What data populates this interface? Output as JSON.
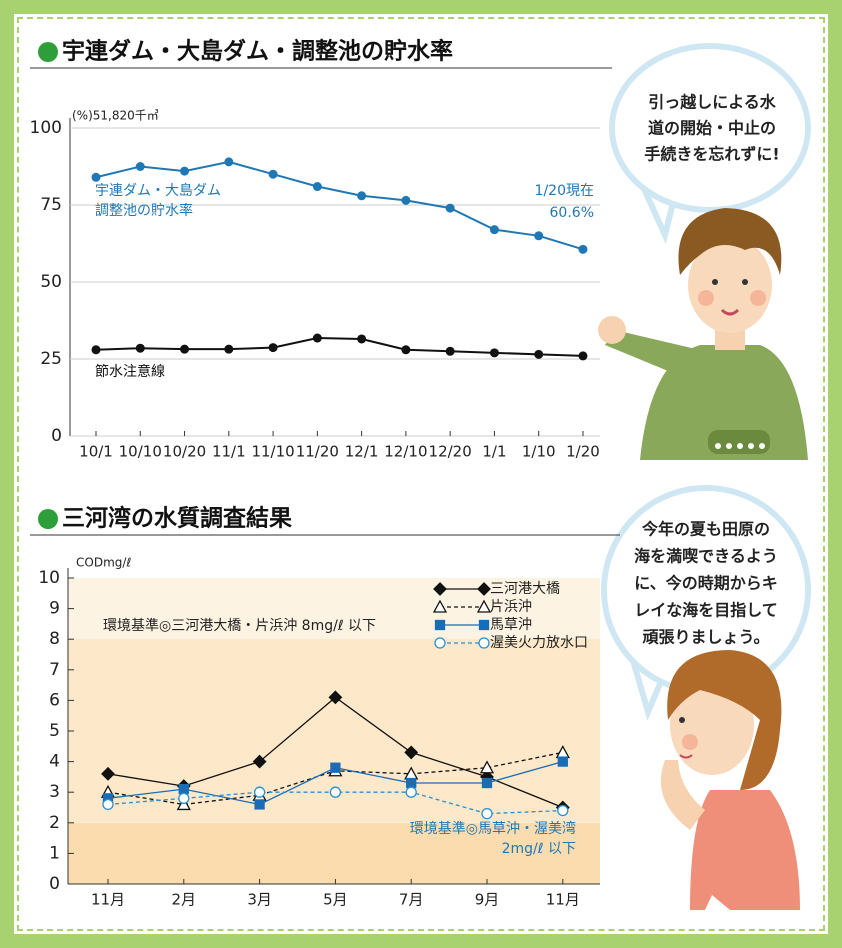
{
  "panels": [
    {
      "chart_data": {
        "type": "line",
        "title": "宇連ダム・大島ダム・調整池の貯水率",
        "unit_label": "(%)51,820千㎥",
        "categories": [
          "10/1",
          "10/10",
          "10/20",
          "11/1",
          "11/10",
          "11/20",
          "12/1",
          "12/10",
          "12/20",
          "1/1",
          "1/10",
          "1/20"
        ],
        "ylim": [
          0,
          100
        ],
        "yticks": [
          0,
          25,
          50,
          75,
          100
        ],
        "grid": true,
        "series": [
          {
            "name": [
              "宇連ダム・大島ダム",
              "調整池の貯水率"
            ],
            "color": "#1f78b4",
            "values": [
              84,
              87.5,
              86,
              89,
              85,
              81,
              78,
              76.5,
              74,
              67,
              65,
              60.6
            ],
            "value_labels": [
              null,
              null,
              null,
              null,
              null,
              null,
              null,
              null,
              null,
              null,
              null,
              "60.6%"
            ]
          },
          {
            "name": [
              "節水注意線"
            ],
            "color": "#111111",
            "values": [
              28,
              28.5,
              28.2,
              28.2,
              28.7,
              31.8,
              31.5,
              28,
              27.5,
              27,
              26.5,
              26
            ]
          }
        ],
        "annotations": [
          "1/20現在"
        ]
      }
    },
    {
      "chart_data": {
        "type": "line",
        "title": "三河湾の水質調査結果",
        "unit_label": "CODmg/ℓ",
        "categories": [
          "11月",
          "2月",
          "3月",
          "5月",
          "7月",
          "9月",
          "11月"
        ],
        "ylim": [
          0,
          10
        ],
        "yticks": [
          0,
          1,
          2,
          3,
          4,
          5,
          6,
          7,
          8,
          9,
          10
        ],
        "grid": false,
        "band_colors": [
          "#fbdcae",
          "#fde8c9",
          "#fdf3e3"
        ],
        "standards": [
          {
            "value": 8,
            "label": [
              "環境基準◎三河港大橋・片浜沖 8mg/ℓ 以下"
            ],
            "color": "#222222"
          },
          {
            "value": 2,
            "label": [
              "環境基準◎馬草沖・渥美湾",
              "2mg/ℓ 以下"
            ],
            "color": "#1f78b4"
          }
        ],
        "series": [
          {
            "name": [
              "三河港大橋"
            ],
            "color": "#111111",
            "marker": "diamond",
            "filled": true,
            "dashed": false,
            "values": [
              3.6,
              3.2,
              4.0,
              6.1,
              4.3,
              3.5,
              2.5
            ]
          },
          {
            "name": [
              "片浜沖"
            ],
            "color": "#111111",
            "marker": "triangle",
            "filled": false,
            "dashed": true,
            "values": [
              3.0,
              2.6,
              2.9,
              3.7,
              3.6,
              3.8,
              4.3
            ]
          },
          {
            "name": [
              "馬草沖"
            ],
            "color": "#1a6db5",
            "marker": "square",
            "filled": true,
            "dashed": false,
            "values": [
              2.8,
              3.1,
              2.6,
              3.8,
              3.3,
              3.3,
              4.0
            ]
          },
          {
            "name": [
              "渥美火力放水口"
            ],
            "color": "#2a8fd0",
            "marker": "circle",
            "filled": false,
            "dashed": true,
            "values": [
              2.6,
              2.8,
              3.0,
              3.0,
              3.0,
              2.3,
              2.4
            ]
          }
        ]
      }
    }
  ],
  "bubbles": [
    {
      "lines": [
        "引っ越しによる水",
        "道の開始・中止の",
        "手続きを忘れずに!"
      ]
    },
    {
      "lines": [
        "今年の夏も田原の",
        "海を満喫できるよう",
        "に、今の時期からキ",
        "レイな海を目指して",
        "頑張りましょう。"
      ]
    }
  ]
}
